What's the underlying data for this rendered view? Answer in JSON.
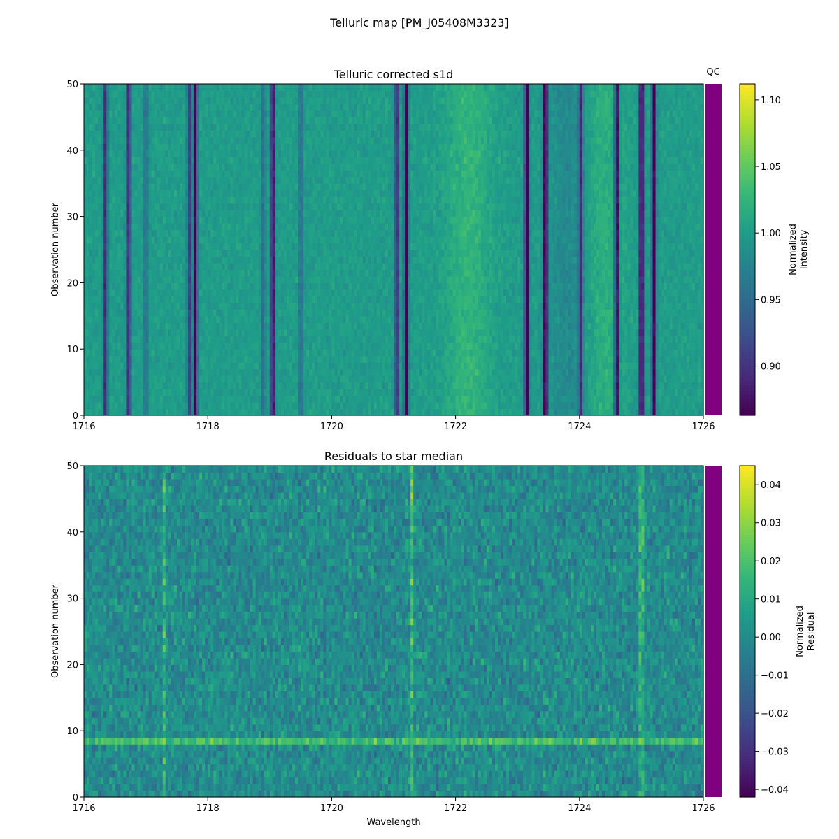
{
  "figure": {
    "suptitle": "Telluric map [PM_J05408M3323]"
  },
  "chart_data": [
    {
      "type": "heatmap",
      "title": "Telluric corrected s1d",
      "xlabel": "",
      "ylabel": "Observation number",
      "xlim": [
        1716,
        1726
      ],
      "ylim": [
        0,
        50
      ],
      "xticks": [
        "1716",
        "1718",
        "1720",
        "1722",
        "1724",
        "1726"
      ],
      "yticks": [
        "0",
        "10",
        "20",
        "30",
        "40",
        "50"
      ],
      "colormap": "viridis",
      "colorbar": {
        "label": [
          "Normalized",
          "Intensity"
        ],
        "range": [
          0.863,
          1.112
        ],
        "ticks": [
          "0.90",
          "0.95",
          "1.00",
          "1.05",
          "1.10"
        ],
        "tick_values": [
          0.9,
          0.95,
          1.0,
          1.05,
          1.1
        ]
      },
      "qc": {
        "label": "QC",
        "color": "#800080"
      },
      "absorption_lines": [
        {
          "x": 1716.35,
          "depth": 0.11
        },
        {
          "x": 1716.72,
          "depth": 0.12
        },
        {
          "x": 1717.0,
          "depth": 0.05
        },
        {
          "x": 1717.7,
          "depth": 0.09
        },
        {
          "x": 1717.8,
          "depth": 0.14
        },
        {
          "x": 1718.9,
          "depth": 0.05
        },
        {
          "x": 1719.05,
          "depth": 0.15
        },
        {
          "x": 1719.5,
          "depth": 0.05
        },
        {
          "x": 1721.05,
          "depth": 0.12
        },
        {
          "x": 1721.2,
          "depth": 0.16
        },
        {
          "x": 1723.15,
          "depth": 0.17
        },
        {
          "x": 1723.45,
          "depth": 0.17
        },
        {
          "x": 1724.02,
          "depth": 0.1
        },
        {
          "x": 1724.6,
          "depth": 0.16
        },
        {
          "x": 1725.0,
          "depth": 0.16
        },
        {
          "x": 1725.2,
          "depth": 0.14
        }
      ]
    },
    {
      "type": "heatmap",
      "title": "Residuals to star median",
      "xlabel": "Wavelength",
      "ylabel": "Observation number",
      "xlim": [
        1716,
        1726
      ],
      "ylim": [
        0,
        50
      ],
      "xticks": [
        "1716",
        "1718",
        "1720",
        "1722",
        "1724",
        "1726"
      ],
      "yticks": [
        "0",
        "10",
        "20",
        "30",
        "40",
        "50"
      ],
      "colormap": "viridis",
      "colorbar": {
        "label": [
          "Normalized",
          "Residual"
        ],
        "range": [
          -0.042,
          0.045
        ],
        "ticks": [
          "−0.04",
          "−0.03",
          "−0.02",
          "−0.01",
          "0.00",
          "0.01",
          "0.02",
          "0.03",
          "0.04"
        ],
        "tick_values": [
          -0.04,
          -0.03,
          -0.02,
          -0.01,
          0.0,
          0.01,
          0.02,
          0.03,
          0.04
        ]
      },
      "qc": {
        "label": "",
        "color": "#800080"
      },
      "bright_features": [
        {
          "x": 1725.0,
          "value": 0.04
        },
        {
          "x": 1721.3,
          "value": 0.025
        },
        {
          "x": 1717.3,
          "value": 0.02
        }
      ]
    }
  ]
}
